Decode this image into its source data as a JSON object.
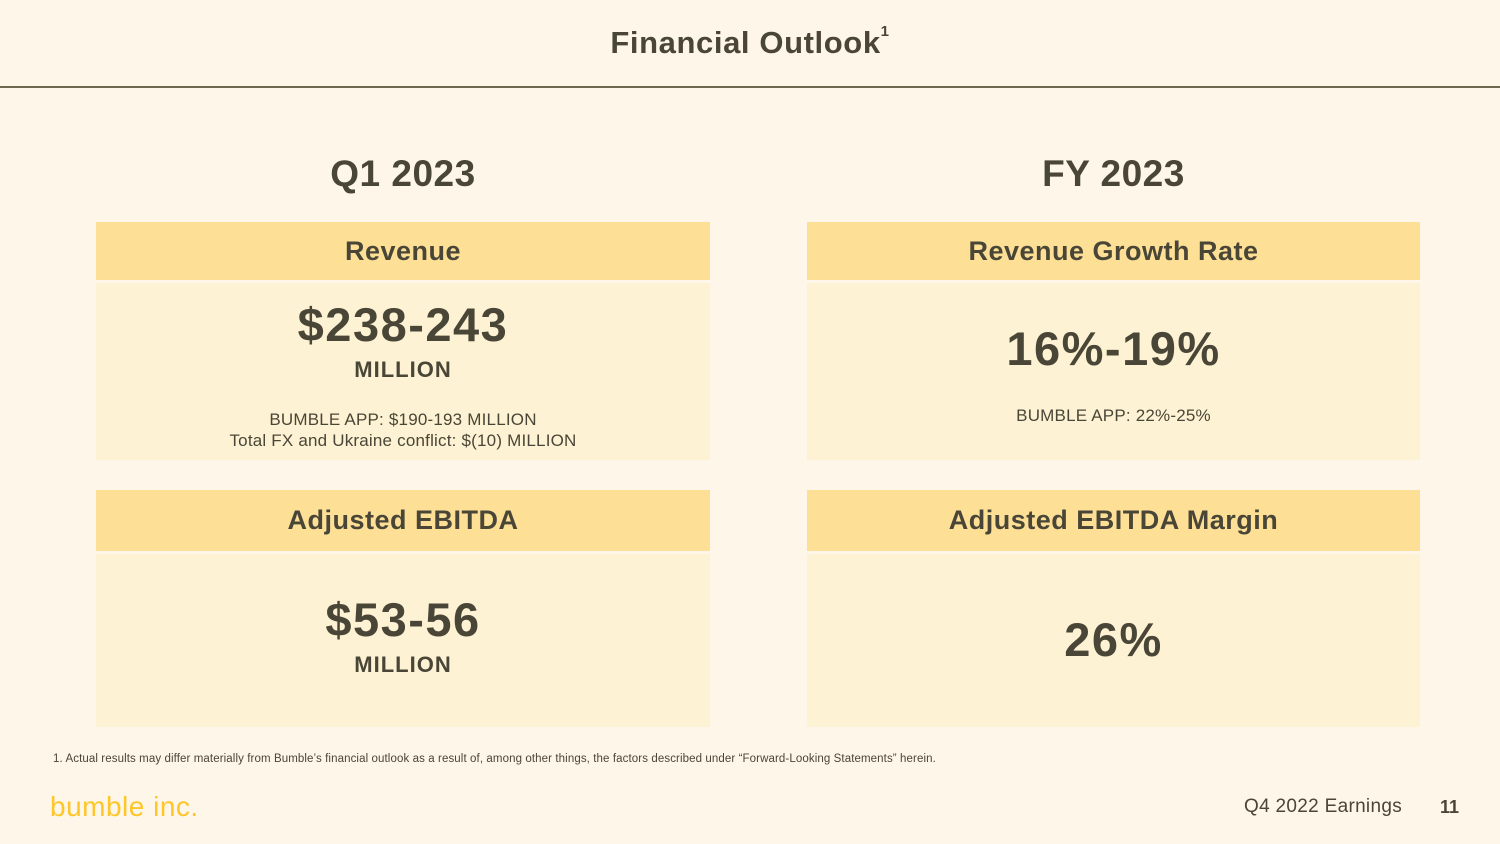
{
  "slide": {
    "title": "Financial Outlook",
    "title_superscript": "1",
    "columns": [
      {
        "heading": "Q1 2023",
        "cards": [
          {
            "header": "Revenue",
            "value": "$238-243",
            "unit": "MILLION",
            "notes": [
              "BUMBLE APP: $190-193 MILLION",
              "Total FX and Ukraine conflict: $(10) MILLION"
            ]
          },
          {
            "header": "Adjusted EBITDA",
            "value": "$53-56",
            "unit": "MILLION",
            "notes": []
          }
        ]
      },
      {
        "heading": "FY 2023",
        "cards": [
          {
            "header": "Revenue Growth Rate",
            "value": "16%-19%",
            "notes": [
              "BUMBLE APP: 22%-25%"
            ]
          },
          {
            "header": "Adjusted EBITDA Margin",
            "value": "26%",
            "notes": []
          }
        ]
      }
    ],
    "footnote": "1. Actual results may differ materially from Bumble’s financial outlook as a result of, among other things, the factors described under “Forward-Looking Statements” herein.",
    "footer": {
      "logo": "bumble inc.",
      "label": "Q4 2022 Earnings",
      "page": "11"
    },
    "colors": {
      "background": "#FDF6E9",
      "card_header": "#FDE096",
      "card_body": "#FDF2D3",
      "text_dark": "#4A4637",
      "divider": "#6E684F",
      "logo_yellow": "#FFC629"
    }
  }
}
